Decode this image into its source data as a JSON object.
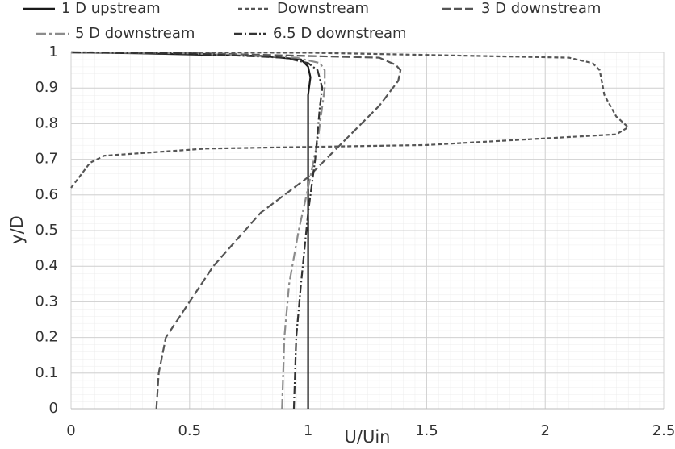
{
  "chart_data": {
    "type": "line",
    "xlabel": "U/Uin",
    "ylabel": "y/D",
    "xlim": [
      0,
      2.5
    ],
    "xticks": [
      0,
      0.5,
      1,
      1.5,
      2,
      2.5
    ],
    "ylim": [
      0,
      1
    ],
    "yticks": [
      0,
      0.1,
      0.2,
      0.3,
      0.4,
      0.5,
      0.6,
      0.7,
      0.8,
      0.9,
      1
    ],
    "grid": true,
    "series": [
      {
        "name": "1 D upstream",
        "color": "#1a1a1a",
        "dash": "none",
        "x": [
          1.0,
          1.0,
          1.0,
          1.01,
          1.0,
          0.97,
          0.8,
          0.3,
          0
        ],
        "values": [
          0,
          0.5,
          0.88,
          0.93,
          0.96,
          0.98,
          0.99,
          0.997,
          1
        ]
      },
      {
        "name": "Downstream",
        "color": "#555555",
        "dash": "5 3",
        "x": [
          0,
          0.08,
          0.14,
          0.57,
          1.5,
          2.3,
          2.35,
          2.3,
          2.25,
          2.23,
          2.2,
          2.1,
          1.0,
          0
        ],
        "values": [
          0.62,
          0.69,
          0.71,
          0.73,
          0.74,
          0.77,
          0.79,
          0.82,
          0.88,
          0.95,
          0.97,
          0.985,
          0.999,
          1
        ]
      },
      {
        "name": "3 D downstream",
        "color": "#555555",
        "dash": "10 4",
        "x": [
          0.36,
          0.37,
          0.4,
          0.5,
          0.6,
          0.8,
          1.0,
          1.15,
          1.3,
          1.38,
          1.39,
          1.37,
          1.3,
          0.5,
          0
        ],
        "values": [
          0,
          0.1,
          0.2,
          0.3,
          0.4,
          0.55,
          0.65,
          0.75,
          0.85,
          0.92,
          0.95,
          0.965,
          0.985,
          0.998,
          1
        ]
      },
      {
        "name": "5 D downstream",
        "color": "#8c8c8c",
        "dash": "12 4 3 4",
        "x": [
          0.89,
          0.9,
          0.92,
          0.96,
          1.0,
          1.04,
          1.06,
          1.07,
          1.07,
          1.05,
          0.95,
          0.5,
          0
        ],
        "values": [
          0,
          0.2,
          0.35,
          0.5,
          0.62,
          0.75,
          0.85,
          0.9,
          0.95,
          0.97,
          0.985,
          0.997,
          1
        ]
      },
      {
        "name": "6.5 D downstream",
        "color": "#333333",
        "dash": "10 3 2 3",
        "x": [
          0.94,
          0.95,
          0.97,
          1.0,
          1.03,
          1.05,
          1.06,
          1.04,
          1.0,
          0.9,
          0.5,
          0
        ],
        "values": [
          0,
          0.2,
          0.35,
          0.55,
          0.7,
          0.85,
          0.9,
          0.95,
          0.97,
          0.985,
          0.997,
          1
        ]
      }
    ]
  }
}
